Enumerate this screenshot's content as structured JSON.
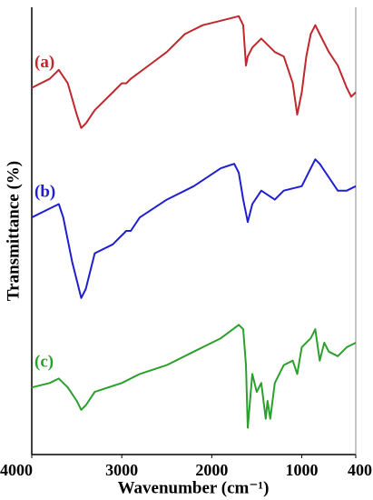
{
  "chart_data": {
    "type": "line",
    "x_label": "Wavenumber (cm⁻¹)",
    "y_label": "Transmittance (%)",
    "xlim": [
      4000,
      400
    ],
    "xticks": [
      4000,
      3000,
      2000,
      1000,
      400
    ],
    "ylim": [
      0,
      100
    ],
    "series": [
      {
        "name": "(a)",
        "color": "#c0282d",
        "x": [
          4000,
          3800,
          3700,
          3600,
          3500,
          3450,
          3400,
          3300,
          3100,
          3000,
          2950,
          2900,
          2700,
          2500,
          2300,
          2100,
          1900,
          1700,
          1650,
          1620,
          1600,
          1550,
          1450,
          1300,
          1200,
          1100,
          1050,
          1000,
          950,
          900,
          850,
          800,
          700,
          600,
          500,
          450,
          400
        ],
        "values": [
          82,
          84,
          86,
          83,
          76,
          73,
          74,
          77,
          81,
          83,
          83,
          84,
          87,
          90,
          94,
          96,
          97,
          98,
          96,
          87,
          89,
          91,
          93,
          90,
          89,
          83,
          76,
          81,
          89,
          94,
          96,
          94,
          90,
          87,
          82,
          80,
          81
        ]
      },
      {
        "name": "(b)",
        "color": "#1f1fd0",
        "x": [
          4000,
          3800,
          3700,
          3650,
          3550,
          3450,
          3400,
          3300,
          3100,
          2950,
          2900,
          2800,
          2500,
          2200,
          1900,
          1750,
          1700,
          1650,
          1600,
          1550,
          1450,
          1300,
          1200,
          1000,
          900,
          850,
          800,
          700,
          600,
          500,
          400
        ],
        "values": [
          53,
          55,
          56,
          53,
          43,
          35,
          37,
          45,
          47,
          50,
          50,
          53,
          57,
          60,
          64,
          65,
          63,
          57,
          52,
          56,
          59,
          57,
          59,
          60,
          64,
          66,
          65,
          62,
          59,
          59,
          60
        ]
      },
      {
        "name": "(c)",
        "color": "#2ca02c",
        "x": [
          4000,
          3800,
          3700,
          3600,
          3500,
          3450,
          3400,
          3300,
          3000,
          2800,
          2500,
          2200,
          1900,
          1700,
          1650,
          1620,
          1600,
          1550,
          1500,
          1450,
          1400,
          1380,
          1350,
          1300,
          1200,
          1100,
          1050,
          1000,
          900,
          850,
          800,
          750,
          700,
          600,
          500,
          400
        ],
        "values": [
          15,
          16,
          17,
          15,
          12,
          10,
          11,
          14,
          16,
          18,
          20,
          23,
          26,
          29,
          28,
          20,
          6,
          18,
          14,
          16,
          8,
          12,
          8,
          16,
          20,
          21,
          18,
          24,
          26,
          28,
          21,
          25,
          23,
          22,
          24,
          25
        ]
      }
    ]
  }
}
